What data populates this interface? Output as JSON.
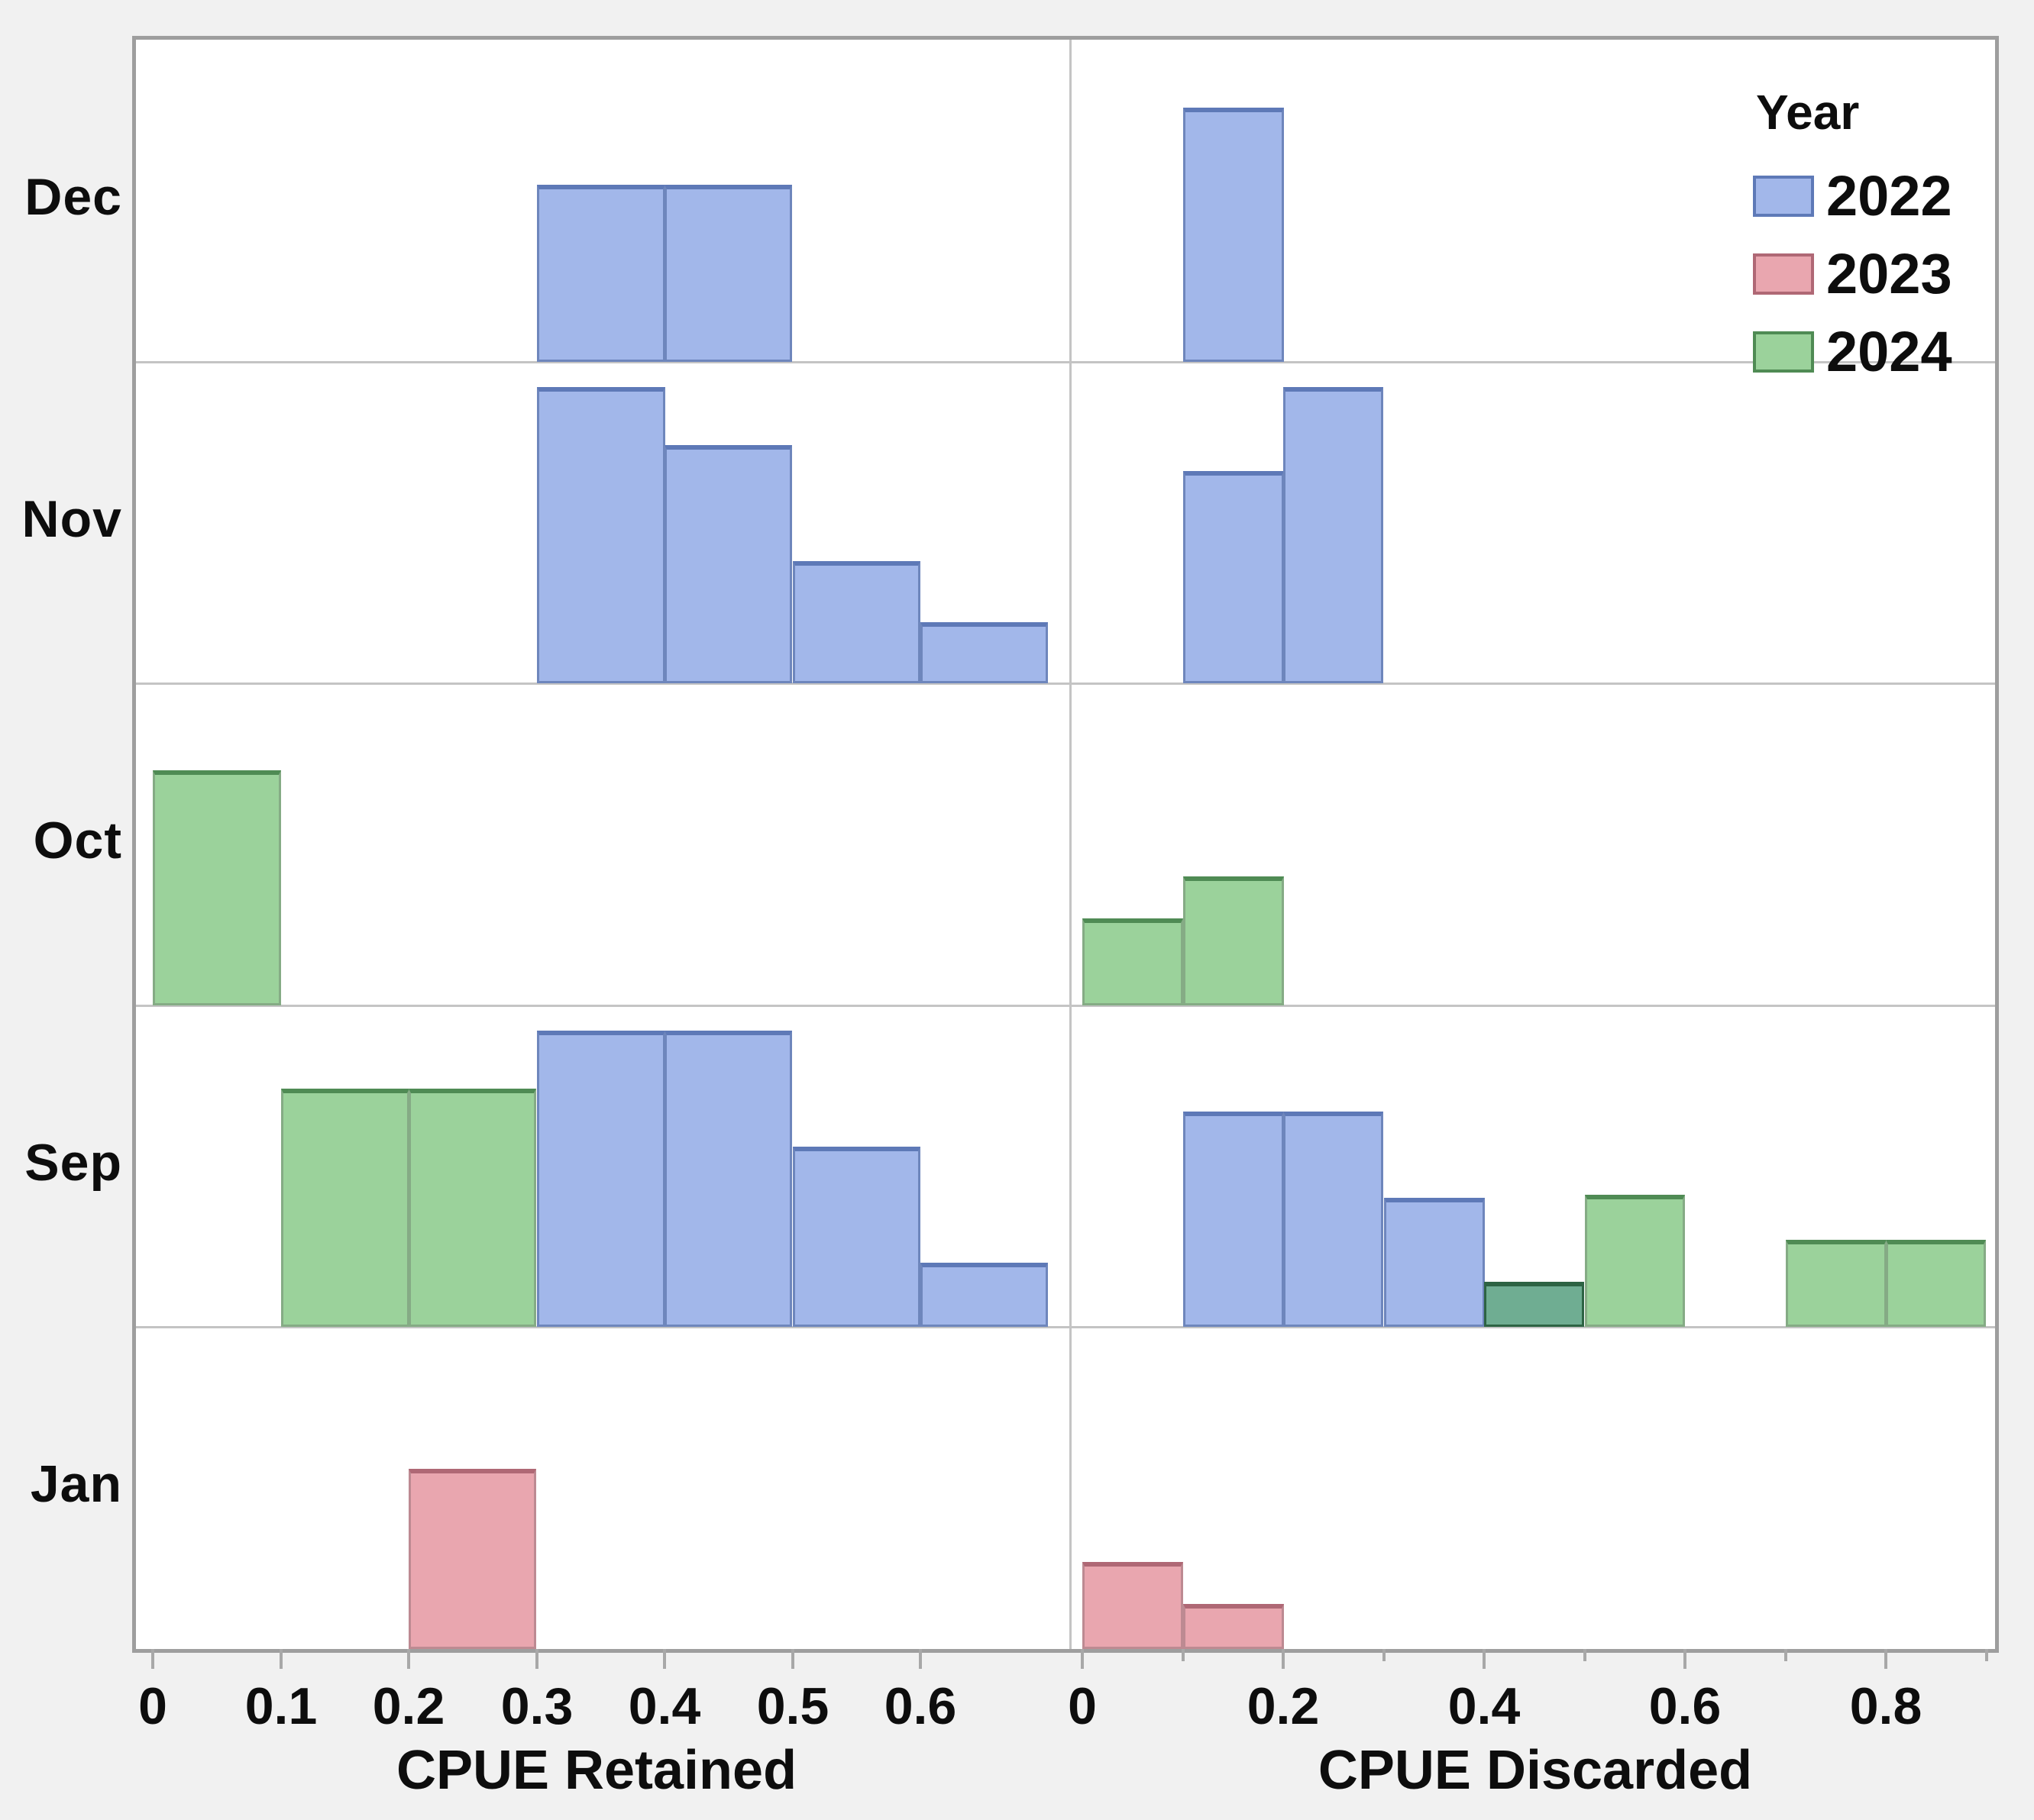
{
  "app": {
    "description": "Faceted histogram matrix of CPUE by month and year"
  },
  "legend": {
    "title": "Year",
    "items": [
      {
        "label": "2022",
        "year": "2022"
      },
      {
        "label": "2023",
        "year": "2023"
      },
      {
        "label": "2024",
        "year": "2024"
      }
    ]
  },
  "colors": {
    "2022": {
      "fill": "#A2B7EA",
      "edge": "#6E86BC",
      "top": "#5E79B7"
    },
    "2023": {
      "fill": "#E9A6AF",
      "edge": "#BD8A92",
      "top": "#AF6875"
    },
    "2024": {
      "fill": "#9BD29B",
      "edge": "#85AB85",
      "top": "#4F8B54"
    },
    "2022+2024": {
      "fill": "#6FAD92",
      "edge": "#2D6343",
      "top": "#2D6343"
    }
  },
  "chart_data": {
    "type": "bar",
    "subtype": "faceted-histogram-matrix",
    "row_variable": "Month",
    "rows": [
      "Dec",
      "Nov",
      "Oct",
      "Sep",
      "Jan"
    ],
    "bin_width": 0.1,
    "y_axis": "unlabeled count axis; heights recorded as fraction of facet row height",
    "legend_position": "top-right inside Discarded panel",
    "grid": false,
    "columns": [
      {
        "key": "retained",
        "xlabel": "CPUE Retained",
        "xlim": [
          0,
          0.72
        ],
        "tick_values": [
          0,
          0.1,
          0.2,
          0.3,
          0.4,
          0.5,
          0.6
        ],
        "tick_labels": [
          "0",
          "0.1",
          "0.2",
          "0.3",
          "0.4",
          "0.5",
          "0.6"
        ],
        "medium_tick_values": []
      },
      {
        "key": "discarded",
        "xlabel": "CPUE Discarded",
        "xlim": [
          0,
          0.91
        ],
        "tick_values": [
          0,
          0.2,
          0.4,
          0.6,
          0.8
        ],
        "tick_labels": [
          "0",
          "0.2",
          "0.4",
          "0.6",
          "0.8"
        ],
        "medium_tick_values": [
          0.1,
          0.3,
          0.5,
          0.7,
          0.9
        ]
      }
    ],
    "cells": {
      "Dec": {
        "retained": [
          {
            "bin": [
              0.3,
              0.4
            ],
            "year": "2022",
            "height_frac": 0.55
          },
          {
            "bin": [
              0.4,
              0.5
            ],
            "year": "2022",
            "height_frac": 0.55
          }
        ],
        "discarded": [
          {
            "bin": [
              0.1,
              0.2
            ],
            "year": "2022",
            "height_frac": 0.79
          }
        ]
      },
      "Nov": {
        "retained": [
          {
            "bin": [
              0.3,
              0.4
            ],
            "year": "2022",
            "height_frac": 0.92
          },
          {
            "bin": [
              0.4,
              0.5
            ],
            "year": "2022",
            "height_frac": 0.74
          },
          {
            "bin": [
              0.5,
              0.6
            ],
            "year": "2022",
            "height_frac": 0.38
          },
          {
            "bin": [
              0.6,
              0.7
            ],
            "year": "2022",
            "height_frac": 0.19
          }
        ],
        "discarded": [
          {
            "bin": [
              0.1,
              0.2
            ],
            "year": "2022",
            "height_frac": 0.66
          },
          {
            "bin": [
              0.2,
              0.3
            ],
            "year": "2022",
            "height_frac": 0.92
          }
        ]
      },
      "Oct": {
        "retained": [
          {
            "bin": [
              0.0,
              0.1
            ],
            "year": "2024",
            "height_frac": 0.73
          }
        ],
        "discarded": [
          {
            "bin": [
              0.0,
              0.1
            ],
            "year": "2024",
            "height_frac": 0.27
          },
          {
            "bin": [
              0.1,
              0.2
            ],
            "year": "2024",
            "height_frac": 0.4
          }
        ]
      },
      "Sep": {
        "retained": [
          {
            "bin": [
              0.1,
              0.2
            ],
            "year": "2024",
            "height_frac": 0.74
          },
          {
            "bin": [
              0.2,
              0.3
            ],
            "year": "2024",
            "height_frac": 0.74
          },
          {
            "bin": [
              0.3,
              0.4
            ],
            "year": "2022",
            "height_frac": 0.92
          },
          {
            "bin": [
              0.4,
              0.5
            ],
            "year": "2022",
            "height_frac": 0.92
          },
          {
            "bin": [
              0.5,
              0.6
            ],
            "year": "2022",
            "height_frac": 0.56
          },
          {
            "bin": [
              0.6,
              0.7
            ],
            "year": "2022",
            "height_frac": 0.2
          }
        ],
        "discarded": [
          {
            "bin": [
              0.1,
              0.2
            ],
            "year": "2022",
            "height_frac": 0.67
          },
          {
            "bin": [
              0.2,
              0.3
            ],
            "year": "2022",
            "height_frac": 0.67
          },
          {
            "bin": [
              0.3,
              0.4
            ],
            "year": "2022",
            "height_frac": 0.4
          },
          {
            "bin": [
              0.4,
              0.5
            ],
            "year": "2022+2024",
            "height_frac": 0.14
          },
          {
            "bin": [
              0.5,
              0.6
            ],
            "year": "2024",
            "height_frac": 0.41
          },
          {
            "bin": [
              0.7,
              0.8
            ],
            "year": "2024",
            "height_frac": 0.27
          },
          {
            "bin": [
              0.8,
              0.9
            ],
            "year": "2024",
            "height_frac": 0.27
          }
        ]
      },
      "Jan": {
        "retained": [
          {
            "bin": [
              0.2,
              0.3
            ],
            "year": "2023",
            "height_frac": 0.56
          }
        ],
        "discarded": [
          {
            "bin": [
              0.0,
              0.1
            ],
            "year": "2023",
            "height_frac": 0.27
          },
          {
            "bin": [
              0.1,
              0.2
            ],
            "year": "2023",
            "height_frac": 0.14
          }
        ]
      }
    }
  }
}
